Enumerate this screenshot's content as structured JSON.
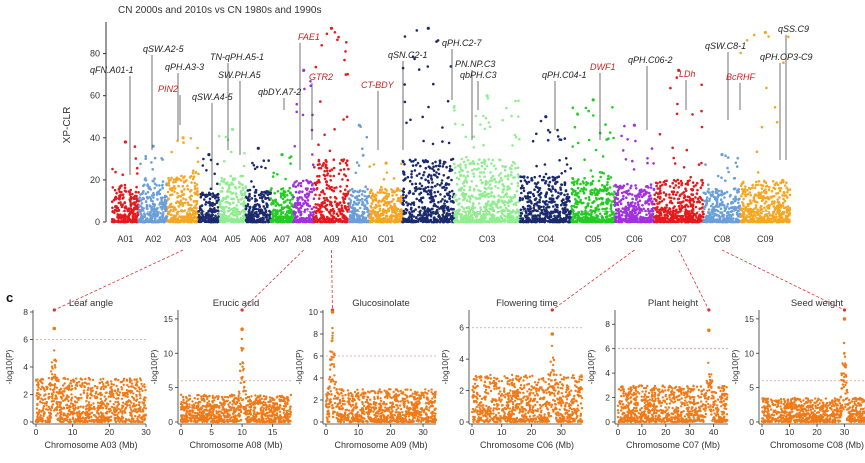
{
  "panel_letter": "c",
  "chart_data": [
    {
      "type": "scatter",
      "subtype": "manhattan",
      "title": "CN 2000s and 2010s vs CN 1980s and 1990s",
      "ylabel": "XP-CLR",
      "ylim": [
        0,
        95
      ],
      "yticks": [
        0,
        20,
        40,
        60,
        80
      ],
      "threshold": 5,
      "chromosomes": [
        {
          "name": "A01",
          "color": "#e41a1c",
          "peak": 38,
          "base": 18,
          "w": 26
        },
        {
          "name": "A02",
          "color": "#6a9fd8",
          "peak": 36,
          "base": 20,
          "w": 28
        },
        {
          "name": "A03",
          "color": "#f5a623",
          "peak": 40,
          "base": 22,
          "w": 30
        },
        {
          "name": "A04",
          "color": "#1a2a6c",
          "peak": 32,
          "base": 14,
          "w": 20
        },
        {
          "name": "A05",
          "color": "#90ee90",
          "peak": 44,
          "base": 22,
          "w": 26
        },
        {
          "name": "A06",
          "color": "#1a2a6c",
          "peak": 35,
          "base": 16,
          "w": 24
        },
        {
          "name": "A07",
          "color": "#22cc22",
          "peak": 32,
          "base": 16,
          "w": 22
        },
        {
          "name": "A08",
          "color": "#a030e0",
          "peak": 72,
          "base": 20,
          "w": 20
        },
        {
          "name": "A09",
          "color": "#e41a1c",
          "peak": 92,
          "base": 30,
          "w": 34
        },
        {
          "name": "A10",
          "color": "#6a9fd8",
          "peak": 46,
          "base": 18,
          "w": 20
        },
        {
          "name": "C01",
          "color": "#f5a623",
          "peak": 28,
          "base": 16,
          "w": 32
        },
        {
          "name": "C02",
          "color": "#1a2a6c",
          "peak": 92,
          "base": 30,
          "w": 50
        },
        {
          "name": "C03",
          "color": "#90ee90",
          "peak": 60,
          "base": 30,
          "w": 64
        },
        {
          "name": "C04",
          "color": "#1a2a6c",
          "peak": 50,
          "base": 22,
          "w": 50
        },
        {
          "name": "C05",
          "color": "#22cc22",
          "peak": 58,
          "base": 22,
          "w": 42
        },
        {
          "name": "C06",
          "color": "#a030e0",
          "peak": 46,
          "base": 18,
          "w": 38
        },
        {
          "name": "C07",
          "color": "#e41a1c",
          "peak": 72,
          "base": 20,
          "w": 48
        },
        {
          "name": "C08",
          "color": "#6a9fd8",
          "peak": 32,
          "base": 16,
          "w": 36
        },
        {
          "name": "C09",
          "color": "#f5a623",
          "peak": 90,
          "base": 20,
          "w": 48
        }
      ],
      "annotations": [
        {
          "label": "qFN.A01-1",
          "red": false
        },
        {
          "label": "qSW.A2-5",
          "red": false
        },
        {
          "label": "qPH.A3-3",
          "red": false
        },
        {
          "label": "PIN2",
          "red": true
        },
        {
          "label": "qSW.A4-5",
          "red": false
        },
        {
          "label": "TN-qPH.A5-1",
          "red": false
        },
        {
          "label": "SW.PH.A5",
          "red": false
        },
        {
          "label": "FAE1",
          "red": true
        },
        {
          "label": "qbDY.A7-2",
          "red": false
        },
        {
          "label": "GTR2",
          "red": true
        },
        {
          "label": "qSN.C2-1",
          "red": false
        },
        {
          "label": "CT-BDY",
          "red": true
        },
        {
          "label": "qPH.C2-7",
          "red": false
        },
        {
          "label": "PN.NP.C3",
          "red": false
        },
        {
          "label": "qbPH.C3",
          "red": false
        },
        {
          "label": "qPH.C04-1",
          "red": false
        },
        {
          "label": "DWF1",
          "red": true
        },
        {
          "label": "qPH.C06-2",
          "red": false
        },
        {
          "label": "LDh",
          "red": true
        },
        {
          "label": "qSW.C8-1",
          "red": false
        },
        {
          "label": "BcRHF",
          "red": true
        },
        {
          "label": "qSS.C9",
          "red": false
        },
        {
          "label": "qPH.OP3-C9",
          "red": false
        }
      ]
    },
    {
      "type": "scatter",
      "subtype": "gwas",
      "title": "Leaf angle",
      "xlabel": "Chromosome A03 (Mb)",
      "ylabel": "-log10(P)",
      "xlim": [
        0,
        30
      ],
      "ylim": [
        0,
        8
      ],
      "xticks": [
        0,
        10,
        20,
        30
      ],
      "yticks": [
        0,
        2,
        4,
        6,
        8
      ],
      "threshold": 6,
      "peak_x": 5,
      "peak_y": 6.8,
      "base": 3.2
    },
    {
      "type": "scatter",
      "subtype": "gwas",
      "title": "Erucic acid",
      "xlabel": "Chromosome A08 (Mb)",
      "ylabel": "-log10(P)",
      "xlim": [
        0,
        18
      ],
      "ylim": [
        0,
        16
      ],
      "xticks": [
        0,
        5,
        10,
        15
      ],
      "yticks": [
        0,
        5,
        10,
        15
      ],
      "threshold": 6,
      "peak_x": 10,
      "peak_y": 13.5,
      "base": 4
    },
    {
      "type": "scatter",
      "subtype": "gwas",
      "title": "Glucosinolate",
      "xlabel": "Chromosome A09 (Mb)",
      "ylabel": "-log10(P)",
      "xlim": [
        0,
        34
      ],
      "ylim": [
        0,
        10
      ],
      "xticks": [
        0,
        10,
        20,
        30
      ],
      "yticks": [
        0,
        2,
        4,
        6,
        8,
        10
      ],
      "threshold": 6,
      "peak_x": 2,
      "peak_y": 10.5,
      "base": 3
    },
    {
      "type": "scatter",
      "subtype": "gwas",
      "title": "Flowering time",
      "xlabel": "Chromosome C06 (Mb)",
      "ylabel": "-log10(P)",
      "xlim": [
        0,
        37
      ],
      "ylim": [
        0,
        7
      ],
      "xticks": [
        0,
        10,
        20,
        30
      ],
      "yticks": [
        0,
        2,
        4,
        6
      ],
      "threshold": 6,
      "peak_x": 27,
      "peak_y": 5.6,
      "base": 3
    },
    {
      "type": "scatter",
      "subtype": "gwas",
      "title": "Plant height",
      "xlabel": "Chromosome C07 (Mb)",
      "ylabel": "-log10(P)",
      "xlim": [
        0,
        46
      ],
      "ylim": [
        0,
        9
      ],
      "xticks": [
        0,
        10,
        20,
        30,
        40
      ],
      "yticks": [
        0,
        2,
        4,
        6,
        8
      ],
      "threshold": 6,
      "peak_x": 38,
      "peak_y": 7.5,
      "base": 3
    },
    {
      "type": "scatter",
      "subtype": "gwas",
      "title": "Seed weight",
      "xlabel": "Chromosome C08 (Mb)",
      "ylabel": "-log10(P)",
      "xlim": [
        0,
        40
      ],
      "ylim": [
        0,
        16
      ],
      "xticks": [
        0,
        10,
        20,
        30
      ],
      "yticks": [
        0,
        5,
        10,
        15
      ],
      "threshold": 6,
      "peak_x": 30,
      "peak_y": 15,
      "base": 3.5
    }
  ]
}
